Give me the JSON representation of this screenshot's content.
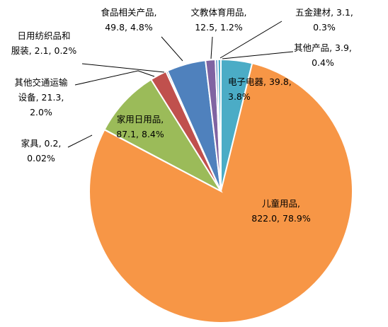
{
  "chart_data": {
    "type": "pie",
    "title": "",
    "legend": "none",
    "slices": [
      {
        "name": "电子电器",
        "value": 39.8,
        "pct": 3.8,
        "color": "#4BACC6",
        "label_lines": [
          "电子电器, 39.8,",
          "3.8%"
        ]
      },
      {
        "name": "儿童用品",
        "value": 822.0,
        "pct": 78.9,
        "color": "#F79646",
        "label_lines": [
          "儿童用品,",
          "822.0, 78.9%"
        ]
      },
      {
        "name": "家具",
        "value": 0.2,
        "pct": 0.02,
        "color": "#8064A2",
        "label_lines": [
          "家具, 0.2,",
          "0.02%"
        ]
      },
      {
        "name": "家用日用品",
        "value": 87.1,
        "pct": 8.4,
        "color": "#9BBB59",
        "label_lines": [
          "家用日用品,",
          "87.1, 8.4%"
        ]
      },
      {
        "name": "其他交通运输设备",
        "value": 21.3,
        "pct": 2.0,
        "color": "#C0504D",
        "label_lines": [
          "其他交通运输",
          "设备, 21.3,",
          "2.0%"
        ]
      },
      {
        "name": "日用纺织品和服装",
        "value": 2.1,
        "pct": 0.2,
        "color": "#1F497D",
        "label_lines": [
          "日用纺织品和",
          "服装, 2.1, 0.2%"
        ]
      },
      {
        "name": "食品相关产品",
        "value": 49.8,
        "pct": 4.8,
        "color": "#4F81BD",
        "label_lines": [
          "食品相关产品,",
          "49.8, 4.8%"
        ]
      },
      {
        "name": "文教体育用品",
        "value": 12.5,
        "pct": 1.2,
        "color": "#8064A2",
        "label_lines": [
          "文教体育用品,",
          "12.5, 1.2%"
        ]
      },
      {
        "name": "五金建材",
        "value": 3.1,
        "pct": 0.3,
        "color": "#4F81BD",
        "label_lines": [
          "五金建材, 3.1,",
          "0.3%"
        ]
      },
      {
        "name": "其他产品",
        "value": 3.9,
        "pct": 0.4,
        "color": "#4BACC6",
        "label_lines": [
          "其他产品, 3.9,",
          "0.4%"
        ]
      }
    ]
  }
}
